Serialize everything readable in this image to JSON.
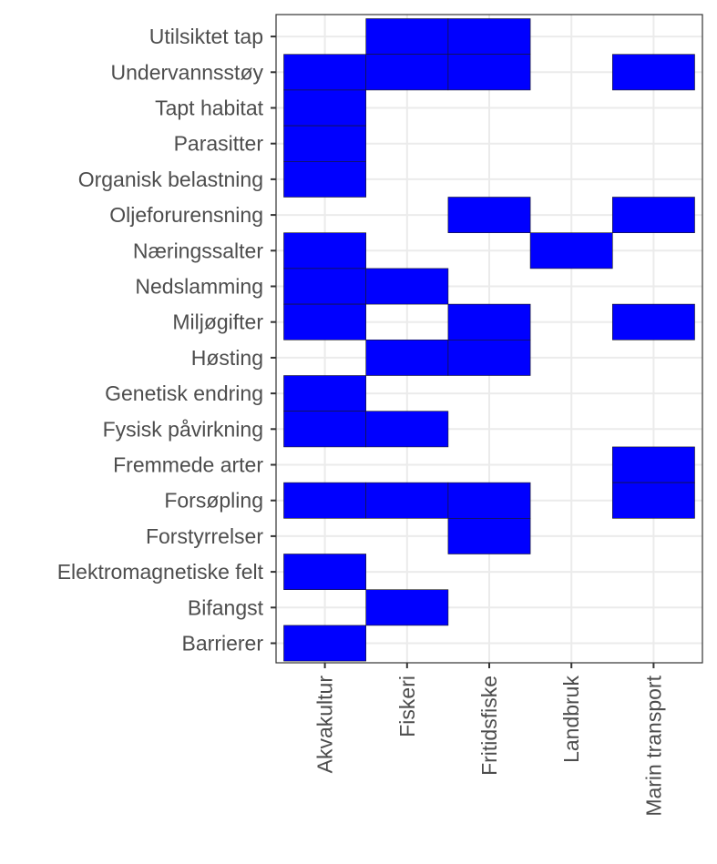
{
  "chart_data": {
    "type": "heatmap",
    "title": "",
    "xlabel": "",
    "ylabel": "",
    "x_categories": [
      "Akvakultur",
      "Fiskeri",
      "Fritidsfiske",
      "Landbruk",
      "Marin transport"
    ],
    "y_categories": [
      "Barrierer",
      "Bifangst",
      "Elektromagnetiske felt",
      "Forstyrrelser",
      "Forsøpling",
      "Fremmede arter",
      "Fysisk påvirkning",
      "Genetisk endring",
      "Høsting",
      "Miljøgifter",
      "Nedslamming",
      "Næringssalter",
      "Oljeforurensning",
      "Organisk belastning",
      "Parasitter",
      "Tapt habitat",
      "Undervannsstøy",
      "Utilsiktet tap"
    ],
    "cells": [
      {
        "x": "Fiskeri",
        "y": "Utilsiktet tap"
      },
      {
        "x": "Fritidsfiske",
        "y": "Utilsiktet tap"
      },
      {
        "x": "Akvakultur",
        "y": "Undervannsstøy"
      },
      {
        "x": "Fiskeri",
        "y": "Undervannsstøy"
      },
      {
        "x": "Fritidsfiske",
        "y": "Undervannsstøy"
      },
      {
        "x": "Marin transport",
        "y": "Undervannsstøy"
      },
      {
        "x": "Akvakultur",
        "y": "Tapt habitat"
      },
      {
        "x": "Akvakultur",
        "y": "Parasitter"
      },
      {
        "x": "Akvakultur",
        "y": "Organisk belastning"
      },
      {
        "x": "Fritidsfiske",
        "y": "Oljeforurensning"
      },
      {
        "x": "Marin transport",
        "y": "Oljeforurensning"
      },
      {
        "x": "Akvakultur",
        "y": "Næringssalter"
      },
      {
        "x": "Landbruk",
        "y": "Næringssalter"
      },
      {
        "x": "Akvakultur",
        "y": "Nedslamming"
      },
      {
        "x": "Fiskeri",
        "y": "Nedslamming"
      },
      {
        "x": "Akvakultur",
        "y": "Miljøgifter"
      },
      {
        "x": "Fritidsfiske",
        "y": "Miljøgifter"
      },
      {
        "x": "Marin transport",
        "y": "Miljøgifter"
      },
      {
        "x": "Fiskeri",
        "y": "Høsting"
      },
      {
        "x": "Fritidsfiske",
        "y": "Høsting"
      },
      {
        "x": "Akvakultur",
        "y": "Genetisk endring"
      },
      {
        "x": "Akvakultur",
        "y": "Fysisk påvirkning"
      },
      {
        "x": "Fiskeri",
        "y": "Fysisk påvirkning"
      },
      {
        "x": "Marin transport",
        "y": "Fremmede arter"
      },
      {
        "x": "Akvakultur",
        "y": "Forsøpling"
      },
      {
        "x": "Fiskeri",
        "y": "Forsøpling"
      },
      {
        "x": "Fritidsfiske",
        "y": "Forsøpling"
      },
      {
        "x": "Marin transport",
        "y": "Forsøpling"
      },
      {
        "x": "Fritidsfiske",
        "y": "Forstyrrelser"
      },
      {
        "x": "Akvakultur",
        "y": "Elektromagnetiske felt"
      },
      {
        "x": "Fiskeri",
        "y": "Bifangst"
      },
      {
        "x": "Akvakultur",
        "y": "Barrierer"
      }
    ],
    "fill_color": "#0000ff",
    "cell_border_color": "#1a1a1a",
    "grid": true,
    "grid_color": "#ebebeb",
    "panel_border_color": "#333333",
    "legend": "none"
  }
}
